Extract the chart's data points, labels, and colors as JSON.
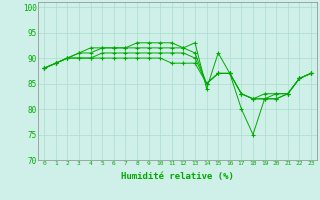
{
  "title": "",
  "xlabel": "Humidité relative (%)",
  "ylabel": "",
  "xlim": [
    -0.5,
    23.5
  ],
  "ylim": [
    70,
    101
  ],
  "yticks": [
    70,
    75,
    80,
    85,
    90,
    95,
    100
  ],
  "xticks": [
    0,
    1,
    2,
    3,
    4,
    5,
    6,
    7,
    8,
    9,
    10,
    11,
    12,
    13,
    14,
    15,
    16,
    17,
    18,
    19,
    20,
    21,
    22,
    23
  ],
  "background_color": "#cff0e8",
  "grid_color": "#aaddcc",
  "line_color": "#00aa00",
  "series": [
    [
      88,
      89,
      90,
      91,
      92,
      92,
      92,
      92,
      93,
      93,
      93,
      93,
      92,
      93,
      84,
      91,
      87,
      80,
      75,
      82,
      83,
      83,
      86,
      87
    ],
    [
      88,
      89,
      90,
      91,
      91,
      92,
      92,
      92,
      92,
      92,
      92,
      92,
      92,
      91,
      85,
      87,
      87,
      83,
      82,
      83,
      83,
      83,
      86,
      87
    ],
    [
      88,
      89,
      90,
      90,
      90,
      91,
      91,
      91,
      91,
      91,
      91,
      91,
      91,
      90,
      85,
      87,
      87,
      83,
      82,
      82,
      82,
      83,
      86,
      87
    ],
    [
      88,
      89,
      90,
      90,
      90,
      90,
      90,
      90,
      90,
      90,
      90,
      89,
      89,
      89,
      85,
      87,
      87,
      83,
      82,
      82,
      82,
      83,
      86,
      87
    ]
  ]
}
